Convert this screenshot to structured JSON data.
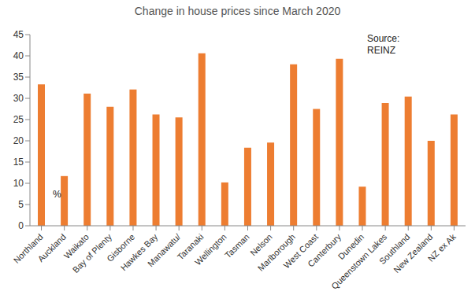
{
  "chart_data": {
    "type": "bar",
    "title": "Change in house prices since March 2020",
    "source_note": [
      "Source:",
      "REINZ"
    ],
    "unit_label": "%",
    "categories": [
      "Northland",
      "Auckland",
      "Waikato",
      "Bay of Plenty",
      "Gisborne",
      "Hawkes Bay",
      "Manawatu/",
      "Taranaki",
      "Wellington",
      "Tasman",
      "Nelson",
      "Marlborough",
      "West Coast",
      "Canterbury",
      "Dunedin",
      "Queenstown Lakes",
      "Southland",
      "New Zealand",
      "NZ ex Ak"
    ],
    "values": [
      33.3,
      11.7,
      31.1,
      28.0,
      32.1,
      26.2,
      25.5,
      40.6,
      10.2,
      18.4,
      19.6,
      38.0,
      27.5,
      39.3,
      9.2,
      28.9,
      30.4,
      20.0,
      26.2
    ],
    "color": "#ed7d31",
    "ylim": [
      0,
      45
    ],
    "yticks": [
      0,
      5,
      10,
      15,
      20,
      25,
      30,
      35,
      40,
      45
    ],
    "grid": false
  }
}
